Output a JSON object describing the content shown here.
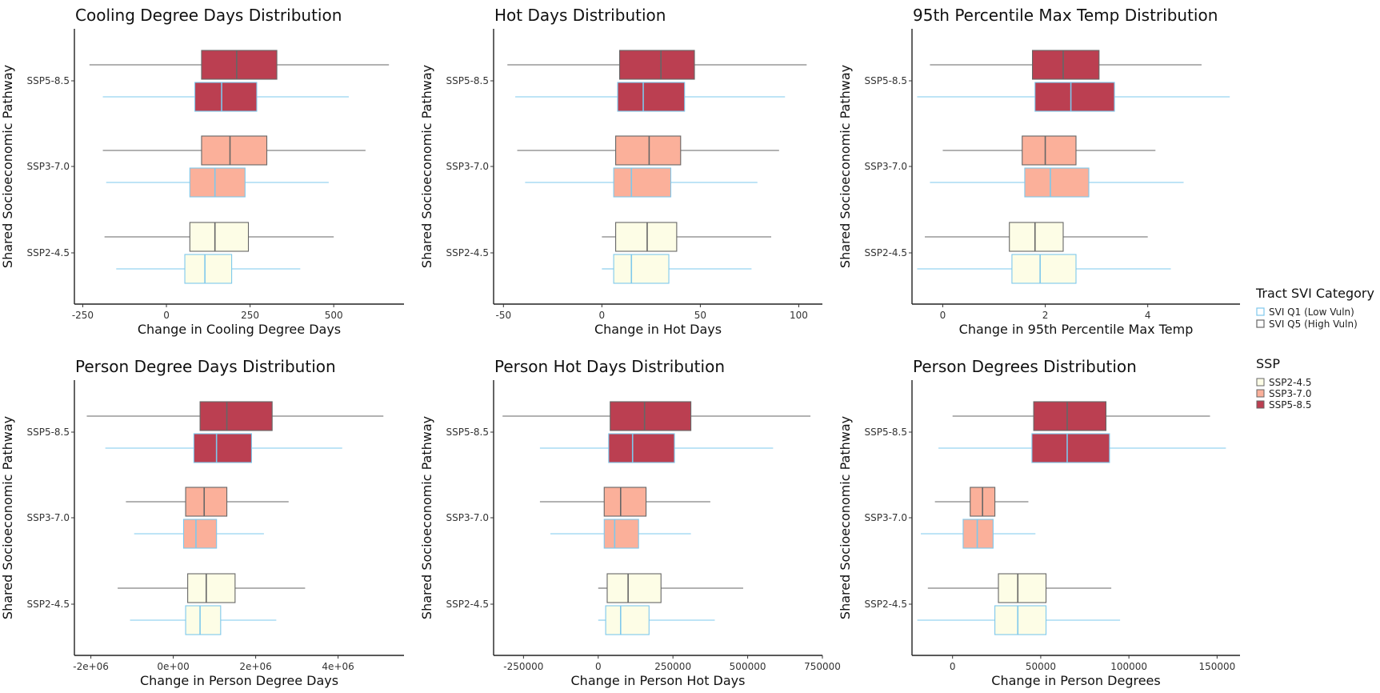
{
  "colors": {
    "ssp": {
      "SSP2-4.5": "#fdfde6",
      "SSP3-7.0": "#fbb09a",
      "SSP5-8.5": "#bb3f51"
    },
    "svi_outline": {
      "SVI Q1 (Low Vuln)": "#7ec8ec",
      "SVI Q5 (High Vuln)": "#666666"
    }
  },
  "legend": {
    "svi_title": "Tract SVI Category",
    "svi_items": [
      "SVI Q1 (Low Vuln)",
      "SVI Q5 (High Vuln)"
    ],
    "ssp_title": "SSP",
    "ssp_items": [
      "SSP2-4.5",
      "SSP3-7.0",
      "SSP5-8.5"
    ]
  },
  "chart_data": [
    {
      "type": "boxplot",
      "title": "Cooling Degree Days Distribution",
      "xlabel": "Change in Cooling Degree Days",
      "ylabel": "Shared Socioeconomic Pathway",
      "xlim": [
        -275,
        710
      ],
      "xticks": [
        -250,
        0,
        250,
        500
      ],
      "xtick_labels": [
        "-250",
        "0",
        "250",
        "500"
      ],
      "categories": [
        "SSP5-8.5",
        "SSP3-7.0",
        "SSP2-4.5"
      ],
      "boxes": [
        {
          "ssp": "SSP5-8.5",
          "svi": "SVI Q5 (High Vuln)",
          "min": -230,
          "q1": 105,
          "median": 210,
          "q3": 330,
          "max": 665
        },
        {
          "ssp": "SSP5-8.5",
          "svi": "SVI Q1 (Low Vuln)",
          "min": -190,
          "q1": 85,
          "median": 165,
          "q3": 270,
          "max": 545
        },
        {
          "ssp": "SSP3-7.0",
          "svi": "SVI Q5 (High Vuln)",
          "min": -190,
          "q1": 105,
          "median": 190,
          "q3": 300,
          "max": 595
        },
        {
          "ssp": "SSP3-7.0",
          "svi": "SVI Q1 (Low Vuln)",
          "min": -180,
          "q1": 70,
          "median": 145,
          "q3": 235,
          "max": 485
        },
        {
          "ssp": "SSP2-4.5",
          "svi": "SVI Q5 (High Vuln)",
          "min": -185,
          "q1": 70,
          "median": 145,
          "q3": 245,
          "max": 500
        },
        {
          "ssp": "SSP2-4.5",
          "svi": "SVI Q1 (Low Vuln)",
          "min": -150,
          "q1": 55,
          "median": 115,
          "q3": 195,
          "max": 400
        }
      ]
    },
    {
      "type": "boxplot",
      "title": "Hot Days Distribution",
      "xlabel": "Change in Hot Days",
      "ylabel": "Shared Socioeconomic Pathway",
      "xlim": [
        -55,
        112
      ],
      "xticks": [
        -50,
        0,
        50,
        100
      ],
      "xtick_labels": [
        "-50",
        "0",
        "50",
        "100"
      ],
      "categories": [
        "SSP5-8.5",
        "SSP3-7.0",
        "SSP2-4.5"
      ],
      "boxes": [
        {
          "ssp": "SSP5-8.5",
          "svi": "SVI Q5 (High Vuln)",
          "min": -48,
          "q1": 9,
          "median": 30,
          "q3": 47,
          "max": 104
        },
        {
          "ssp": "SSP5-8.5",
          "svi": "SVI Q1 (Low Vuln)",
          "min": -44,
          "q1": 8,
          "median": 21,
          "q3": 42,
          "max": 93
        },
        {
          "ssp": "SSP3-7.0",
          "svi": "SVI Q5 (High Vuln)",
          "min": -43,
          "q1": 7,
          "median": 24,
          "q3": 40,
          "max": 90
        },
        {
          "ssp": "SSP3-7.0",
          "svi": "SVI Q1 (Low Vuln)",
          "min": -39,
          "q1": 6,
          "median": 15,
          "q3": 35,
          "max": 79
        },
        {
          "ssp": "SSP2-4.5",
          "svi": "SVI Q5 (High Vuln)",
          "min": 0,
          "q1": 7,
          "median": 23,
          "q3": 38,
          "max": 86
        },
        {
          "ssp": "SSP2-4.5",
          "svi": "SVI Q1 (Low Vuln)",
          "min": 0,
          "q1": 6,
          "median": 15,
          "q3": 34,
          "max": 76
        }
      ]
    },
    {
      "type": "boxplot",
      "title": "95th Percentile Max Temp Distribution",
      "xlabel": "Change in 95th Percentile Max Temp",
      "ylabel": "Shared Socioeconomic Pathway",
      "xlim": [
        -0.6,
        5.8
      ],
      "xticks": [
        0,
        2,
        4
      ],
      "xtick_labels": [
        "0",
        "2",
        "4"
      ],
      "categories": [
        "SSP5-8.5",
        "SSP3-7.0",
        "SSP2-4.5"
      ],
      "boxes": [
        {
          "ssp": "SSP5-8.5",
          "svi": "SVI Q5 (High Vuln)",
          "min": -0.25,
          "q1": 1.75,
          "median": 2.35,
          "q3": 3.05,
          "max": 5.05
        },
        {
          "ssp": "SSP5-8.5",
          "svi": "SVI Q1 (Low Vuln)",
          "min": -0.5,
          "q1": 1.8,
          "median": 2.5,
          "q3": 3.35,
          "max": 5.6
        },
        {
          "ssp": "SSP3-7.0",
          "svi": "SVI Q5 (High Vuln)",
          "min": 0.0,
          "q1": 1.55,
          "median": 2.0,
          "q3": 2.6,
          "max": 4.15
        },
        {
          "ssp": "SSP3-7.0",
          "svi": "SVI Q1 (Low Vuln)",
          "min": -0.25,
          "q1": 1.6,
          "median": 2.1,
          "q3": 2.85,
          "max": 4.7
        },
        {
          "ssp": "SSP2-4.5",
          "svi": "SVI Q5 (High Vuln)",
          "min": -0.35,
          "q1": 1.3,
          "median": 1.8,
          "q3": 2.35,
          "max": 4.0
        },
        {
          "ssp": "SSP2-4.5",
          "svi": "SVI Q1 (Low Vuln)",
          "min": -0.5,
          "q1": 1.35,
          "median": 1.9,
          "q3": 2.6,
          "max": 4.45
        }
      ]
    },
    {
      "type": "boxplot",
      "title": "Person Degree Days Distribution",
      "xlabel": "Change in Person Degree Days",
      "ylabel": "Shared Socioeconomic Pathway",
      "xlim": [
        -2400000,
        5600000
      ],
      "xticks": [
        -2000000,
        0,
        2000000,
        4000000
      ],
      "xtick_labels": [
        "-2e+06",
        "0e+00",
        "2e+06",
        "4e+06"
      ],
      "categories": [
        "SSP5-8.5",
        "SSP3-7.0",
        "SSP2-4.5"
      ],
      "boxes": [
        {
          "ssp": "SSP5-8.5",
          "svi": "SVI Q5 (High Vuln)",
          "min": -2100000,
          "q1": 650000,
          "median": 1300000,
          "q3": 2400000,
          "max": 5100000
        },
        {
          "ssp": "SSP5-8.5",
          "svi": "SVI Q1 (Low Vuln)",
          "min": -1650000,
          "q1": 500000,
          "median": 1050000,
          "q3": 1900000,
          "max": 4100000
        },
        {
          "ssp": "SSP3-7.0",
          "svi": "SVI Q5 (High Vuln)",
          "min": -1150000,
          "q1": 300000,
          "median": 750000,
          "q3": 1300000,
          "max": 2800000
        },
        {
          "ssp": "SSP3-7.0",
          "svi": "SVI Q1 (Low Vuln)",
          "min": -950000,
          "q1": 250000,
          "median": 550000,
          "q3": 1050000,
          "max": 2200000
        },
        {
          "ssp": "SSP2-4.5",
          "svi": "SVI Q5 (High Vuln)",
          "min": -1350000,
          "q1": 350000,
          "median": 800000,
          "q3": 1500000,
          "max": 3200000
        },
        {
          "ssp": "SSP2-4.5",
          "svi": "SVI Q1 (Low Vuln)",
          "min": -1050000,
          "q1": 300000,
          "median": 650000,
          "q3": 1150000,
          "max": 2500000
        }
      ]
    },
    {
      "type": "boxplot",
      "title": "Person Hot Days Distribution",
      "xlabel": "Change in Person Hot Days",
      "ylabel": "Shared Socioeconomic Pathway",
      "xlim": [
        -350000,
        750000
      ],
      "xticks": [
        -250000,
        0,
        250000,
        500000,
        750000
      ],
      "xtick_labels": [
        "-250000",
        "0",
        "250000",
        "500000",
        "750000"
      ],
      "categories": [
        "SSP5-8.5",
        "SSP3-7.0",
        "SSP2-4.5"
      ],
      "boxes": [
        {
          "ssp": "SSP5-8.5",
          "svi": "SVI Q5 (High Vuln)",
          "min": -320000,
          "q1": 40000,
          "median": 155000,
          "q3": 310000,
          "max": 710000
        },
        {
          "ssp": "SSP5-8.5",
          "svi": "SVI Q1 (Low Vuln)",
          "min": -195000,
          "q1": 35000,
          "median": 115000,
          "q3": 255000,
          "max": 585000
        },
        {
          "ssp": "SSP3-7.0",
          "svi": "SVI Q5 (High Vuln)",
          "min": -195000,
          "q1": 20000,
          "median": 75000,
          "q3": 160000,
          "max": 375000
        },
        {
          "ssp": "SSP3-7.0",
          "svi": "SVI Q1 (Low Vuln)",
          "min": -160000,
          "q1": 20000,
          "median": 55000,
          "q3": 135000,
          "max": 310000
        },
        {
          "ssp": "SSP2-4.5",
          "svi": "SVI Q5 (High Vuln)",
          "min": 0,
          "q1": 30000,
          "median": 100000,
          "q3": 210000,
          "max": 485000
        },
        {
          "ssp": "SSP2-4.5",
          "svi": "SVI Q1 (Low Vuln)",
          "min": 0,
          "q1": 25000,
          "median": 75000,
          "q3": 170000,
          "max": 390000
        }
      ]
    },
    {
      "type": "boxplot",
      "title": "Person Degrees Distribution",
      "xlabel": "Change in Person Degrees",
      "ylabel": "Shared Socioeconomic Pathway",
      "xlim": [
        -23000,
        163000
      ],
      "xticks": [
        0,
        50000,
        100000,
        150000
      ],
      "xtick_labels": [
        "0",
        "50000",
        "100000",
        "150000"
      ],
      "categories": [
        "SSP5-8.5",
        "SSP3-7.0",
        "SSP2-4.5"
      ],
      "boxes": [
        {
          "ssp": "SSP5-8.5",
          "svi": "SVI Q5 (High Vuln)",
          "min": 0,
          "q1": 46000,
          "median": 65000,
          "q3": 87000,
          "max": 146000
        },
        {
          "ssp": "SSP5-8.5",
          "svi": "SVI Q1 (Low Vuln)",
          "min": -8000,
          "q1": 45000,
          "median": 65000,
          "q3": 89000,
          "max": 155000
        },
        {
          "ssp": "SSP3-7.0",
          "svi": "SVI Q5 (High Vuln)",
          "min": -10000,
          "q1": 10000,
          "median": 17000,
          "q3": 24000,
          "max": 43000
        },
        {
          "ssp": "SSP3-7.0",
          "svi": "SVI Q1 (Low Vuln)",
          "min": -18000,
          "q1": 6000,
          "median": 14000,
          "q3": 23000,
          "max": 47000
        },
        {
          "ssp": "SSP2-4.5",
          "svi": "SVI Q5 (High Vuln)",
          "min": -14000,
          "q1": 26000,
          "median": 37000,
          "q3": 53000,
          "max": 90000
        },
        {
          "ssp": "SSP2-4.5",
          "svi": "SVI Q1 (Low Vuln)",
          "min": -20000,
          "q1": 24000,
          "median": 37000,
          "q3": 53000,
          "max": 95000
        }
      ]
    }
  ]
}
